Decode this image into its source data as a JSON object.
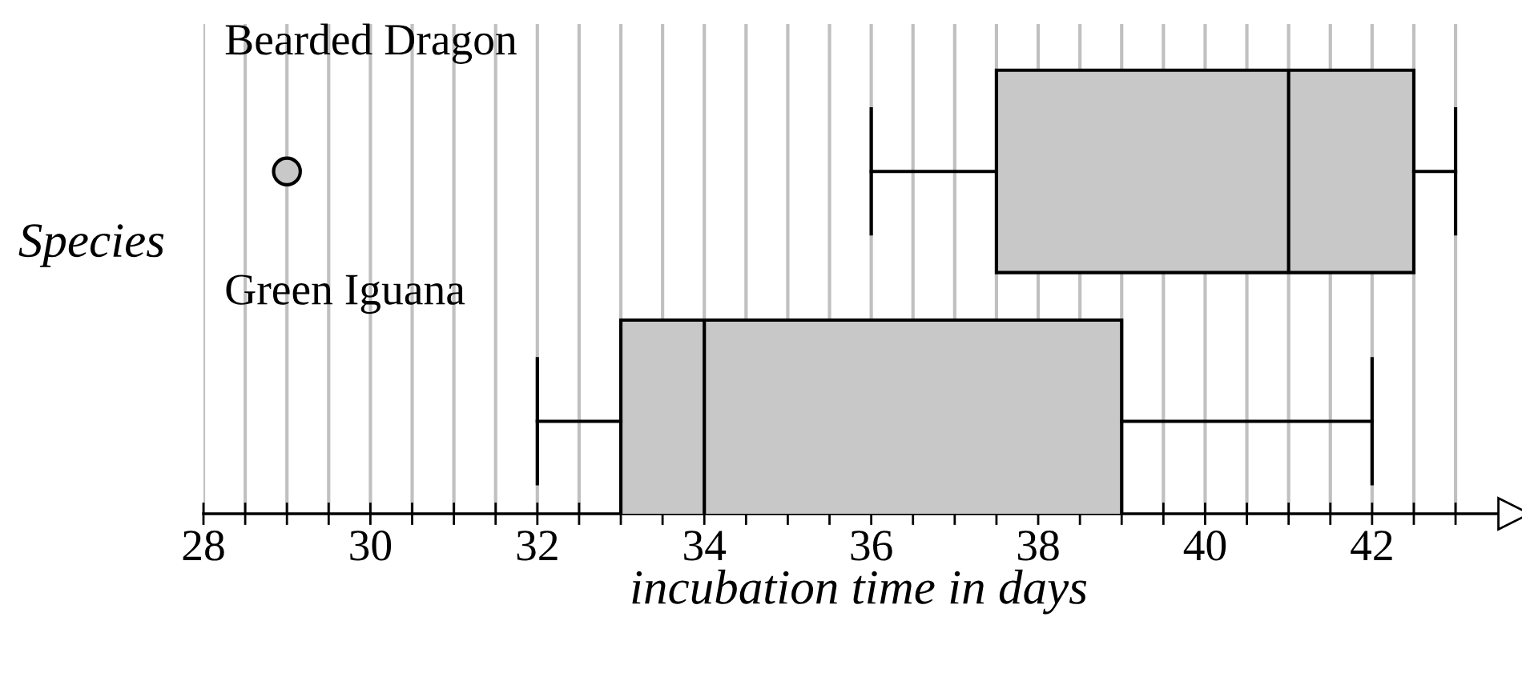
{
  "chart_data": {
    "type": "box",
    "orientation": "horizontal",
    "xlabel": "incubation time in days",
    "ylabel": "Species",
    "categories": [
      "Bearded Dragon",
      "Green Iguana"
    ],
    "boxes": [
      {
        "low": 36,
        "q1": 37.5,
        "median": 41,
        "q3": 42.5,
        "high": 43,
        "outliers": [
          29
        ]
      },
      {
        "low": 32,
        "q1": 33,
        "median": 34,
        "q3": 39,
        "high": 42
      }
    ],
    "color": "#c8c8c8",
    "xlim": [
      28,
      43.7
    ],
    "xticks": [
      28,
      {
        "value": 28.5,
        "label": null
      },
      {
        "value": 29,
        "label": null
      },
      {
        "value": 29.5,
        "label": null
      },
      30,
      {
        "value": 30.5,
        "label": null
      },
      {
        "value": 31,
        "label": null
      },
      {
        "value": 31.5,
        "label": null
      },
      32,
      {
        "value": 32.5,
        "label": null
      },
      {
        "value": 33,
        "label": null
      },
      {
        "value": 33.5,
        "label": null
      },
      34,
      {
        "value": 34.5,
        "label": null
      },
      {
        "value": 35,
        "label": null
      },
      {
        "value": 35.5,
        "label": null
      },
      36,
      {
        "value": 36.5,
        "label": null
      },
      {
        "value": 37,
        "label": null
      },
      {
        "value": 37.5,
        "label": null
      },
      38,
      {
        "value": 38.5,
        "label": null
      },
      {
        "value": 39,
        "label": null
      },
      {
        "value": 39.5,
        "label": null
      },
      40,
      {
        "value": 40.5,
        "label": null
      },
      {
        "value": 41,
        "label": null
      },
      {
        "value": 41.5,
        "label": null
      },
      42,
      {
        "value": 42.5,
        "label": null
      },
      {
        "value": 43,
        "label": null
      }
    ],
    "grid": "x",
    "tick_labels": "x",
    "marker": "circle"
  }
}
